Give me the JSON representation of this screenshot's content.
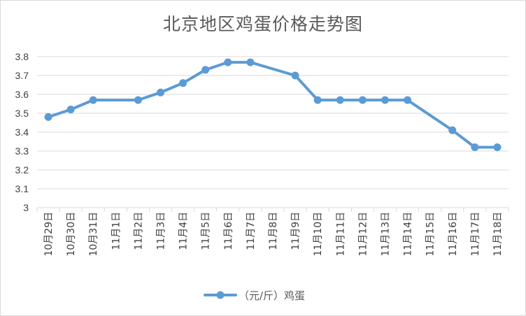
{
  "chart_data": {
    "type": "line",
    "title": "北京地区鸡蛋价格走势图",
    "xlabel": "",
    "ylabel": "",
    "categories": [
      "10月29日",
      "10月30日",
      "10月31日",
      "11月1日",
      "11月2日",
      "11月3日",
      "11月4日",
      "11月5日",
      "11月6日",
      "11月7日",
      "11月8日",
      "11月9日",
      "11月10日",
      "11月11日",
      "11月12日",
      "11月13日",
      "11月14日",
      "11月15日",
      "11月16日",
      "11月17日",
      "11月18日"
    ],
    "series": [
      {
        "name": "（元/斤）鸡蛋",
        "color": "#5b9bd5",
        "values": [
          3.48,
          3.52,
          3.57,
          null,
          3.57,
          3.61,
          3.66,
          3.73,
          3.77,
          3.77,
          null,
          3.7,
          3.57,
          3.57,
          3.57,
          3.57,
          3.57,
          null,
          3.41,
          3.32,
          3.32
        ]
      }
    ],
    "ylim": [
      3,
      3.8
    ],
    "yticks": [
      "3",
      "3.1",
      "3.2",
      "3.3",
      "3.4",
      "3.5",
      "3.6",
      "3.7",
      "3.8"
    ],
    "grid": true,
    "legend": "bottom"
  }
}
